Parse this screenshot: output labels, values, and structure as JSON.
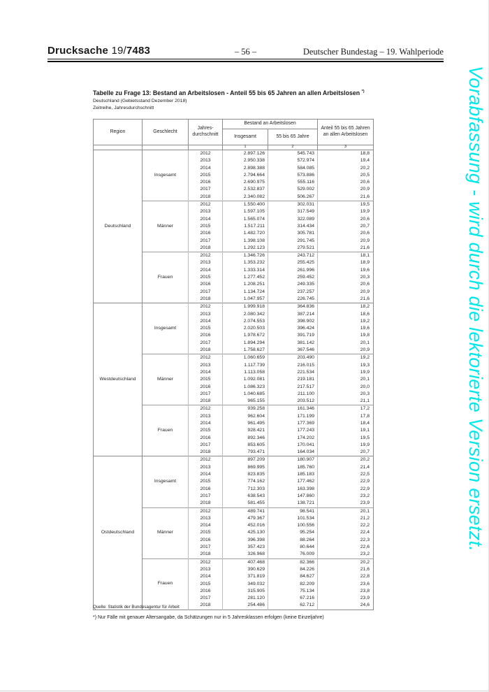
{
  "page_header": {
    "doc_label": "Drucksache",
    "doc_number_prefix": "19/",
    "doc_number_bold": "7483",
    "page_number": "– 56 –",
    "right_text": "Deutscher Bundestag – 19. Wahlperiode"
  },
  "watermark": {
    "text": "Vorabfassung - wird durch die lektorierte Version ersetzt.",
    "color": "#00e8ea"
  },
  "table": {
    "title": "Tabelle zu Frage 13: Bestand an Arbeitslosen - Anteil 55 bis 65 Jahren an allen Arbeitslosen",
    "title_footnote_mark": "*)",
    "subtitle_line1": "Deutschland (Gebietsstand Dezember 2018)",
    "subtitle_line2": "Zeitreihe, Jahresdurchschnitt",
    "header": {
      "region": "Region",
      "geschlecht": "Geschlecht",
      "jahresdurchschnitt": "Jahres-durchschnitt",
      "bestand_group": "Bestand an Arbeitslosen",
      "insgesamt": "Insgesamt",
      "age_col": "55 bis 65 Jahre",
      "anteil": "Anteil 55 bis 65 Jahren an allen Arbeitslosen",
      "col_numbers": [
        "1",
        "2",
        "3"
      ]
    },
    "groups": [
      {
        "region": "Deutschland",
        "genders": [
          {
            "label": "Insgesamt",
            "rows": [
              [
                "2012",
                "2.897.126",
                "545.743",
                "18,8"
              ],
              [
                "2013",
                "2.950.338",
                "572.974",
                "19,4"
              ],
              [
                "2014",
                "2.898.388",
                "584.085",
                "20,2"
              ],
              [
                "2015",
                "2.794.664",
                "573.886",
                "20,5"
              ],
              [
                "2016",
                "2.690.975",
                "555.116",
                "20,6"
              ],
              [
                "2017",
                "2.532.837",
                "529.002",
                "20,9"
              ],
              [
                "2018",
                "2.340.082",
                "506.267",
                "21,6"
              ]
            ]
          },
          {
            "label": "Männer",
            "rows": [
              [
                "2012",
                "1.550.400",
                "302.031",
                "19,5"
              ],
              [
                "2013",
                "1.597.105",
                "317.549",
                "19,9"
              ],
              [
                "2014",
                "1.565.074",
                "322.089",
                "20,6"
              ],
              [
                "2015",
                "1.517.211",
                "314.434",
                "20,7"
              ],
              [
                "2016",
                "1.482.720",
                "305.781",
                "20,6"
              ],
              [
                "2017",
                "1.398.108",
                "291.745",
                "20,9"
              ],
              [
                "2018",
                "1.292.123",
                "279.521",
                "21,6"
              ]
            ]
          },
          {
            "label": "Frauen",
            "rows": [
              [
                "2012",
                "1.346.726",
                "243.712",
                "18,1"
              ],
              [
                "2013",
                "1.353.232",
                "255.425",
                "18,9"
              ],
              [
                "2014",
                "1.333.314",
                "261.996",
                "19,6"
              ],
              [
                "2015",
                "1.277.452",
                "259.452",
                "20,3"
              ],
              [
                "2016",
                "1.208.251",
                "249.335",
                "20,6"
              ],
              [
                "2017",
                "1.134.724",
                "237.257",
                "20,9"
              ],
              [
                "2018",
                "1.047.957",
                "226.745",
                "21,6"
              ]
            ]
          }
        ]
      },
      {
        "region": "Westdeutschland",
        "genders": [
          {
            "label": "Insgesamt",
            "rows": [
              [
                "2012",
                "1.999.918",
                "364.836",
                "18,2"
              ],
              [
                "2013",
                "2.080.342",
                "387.214",
                "18,6"
              ],
              [
                "2014",
                "2.074.553",
                "398.902",
                "19,2"
              ],
              [
                "2015",
                "2.020.503",
                "396.424",
                "19,6"
              ],
              [
                "2016",
                "1.978.672",
                "391.719",
                "19,8"
              ],
              [
                "2017",
                "1.894.294",
                "381.142",
                "20,1"
              ],
              [
                "2018",
                "1.758.627",
                "367.546",
                "20,9"
              ]
            ]
          },
          {
            "label": "Männer",
            "rows": [
              [
                "2012",
                "1.060.659",
                "203.490",
                "19,2"
              ],
              [
                "2013",
                "1.117.739",
                "216.015",
                "19,3"
              ],
              [
                "2014",
                "1.113.058",
                "221.534",
                "19,9"
              ],
              [
                "2015",
                "1.092.081",
                "219.181",
                "20,1"
              ],
              [
                "2016",
                "1.086.323",
                "217.517",
                "20,0"
              ],
              [
                "2017",
                "1.040.685",
                "211.100",
                "20,3"
              ],
              [
                "2018",
                "965.155",
                "203.512",
                "21,1"
              ]
            ]
          },
          {
            "label": "Frauen",
            "rows": [
              [
                "2012",
                "939.258",
                "161.346",
                "17,2"
              ],
              [
                "2013",
                "962.604",
                "171.199",
                "17,8"
              ],
              [
                "2014",
                "961.495",
                "177.369",
                "18,4"
              ],
              [
                "2015",
                "928.421",
                "177.243",
                "19,1"
              ],
              [
                "2016",
                "892.346",
                "174.202",
                "19,5"
              ],
              [
                "2017",
                "853.605",
                "170.041",
                "19,9"
              ],
              [
                "2018",
                "793.471",
                "164.034",
                "20,7"
              ]
            ]
          }
        ]
      },
      {
        "region": "Ostdeutschland",
        "genders": [
          {
            "label": "Insgesamt",
            "rows": [
              [
                "2012",
                "897.209",
                "180.907",
                "20,2"
              ],
              [
                "2013",
                "869.995",
                "185.760",
                "21,4"
              ],
              [
                "2014",
                "823.835",
                "185.183",
                "22,5"
              ],
              [
                "2015",
                "774.162",
                "177.462",
                "22,9"
              ],
              [
                "2016",
                "712.303",
                "163.398",
                "22,9"
              ],
              [
                "2017",
                "638.543",
                "147.860",
                "23,2"
              ],
              [
                "2018",
                "581.455",
                "138.721",
                "23,9"
              ]
            ]
          },
          {
            "label": "Männer",
            "rows": [
              [
                "2012",
                "489.741",
                "98.541",
                "20,1"
              ],
              [
                "2013",
                "479.367",
                "101.534",
                "21,2"
              ],
              [
                "2014",
                "452.016",
                "100.556",
                "22,2"
              ],
              [
                "2015",
                "425.130",
                "95.254",
                "22,4"
              ],
              [
                "2016",
                "396.398",
                "88.264",
                "22,3"
              ],
              [
                "2017",
                "357.423",
                "80.644",
                "22,6"
              ],
              [
                "2018",
                "326.968",
                "76.009",
                "23,2"
              ]
            ]
          },
          {
            "label": "Frauen",
            "rows": [
              [
                "2012",
                "407.468",
                "82.366",
                "20,2"
              ],
              [
                "2013",
                "390.629",
                "84.226",
                "21,6"
              ],
              [
                "2014",
                "371.819",
                "84.627",
                "22,8"
              ],
              [
                "2015",
                "349.032",
                "82.209",
                "23,6"
              ],
              [
                "2016",
                "315.905",
                "75.134",
                "23,8"
              ],
              [
                "2017",
                "281.120",
                "67.216",
                "23,9"
              ],
              [
                "2018",
                "254.486",
                "62.712",
                "24,6"
              ]
            ]
          }
        ]
      }
    ],
    "quelle": "Quelle: Statistik der Bundesagentur für Arbeit",
    "footnote": "*) Nur Fälle mit genauer Altersangabe, da Schätzungen nur in 5 Jahresklassen erfolgen (keine Einzeljahre)"
  }
}
